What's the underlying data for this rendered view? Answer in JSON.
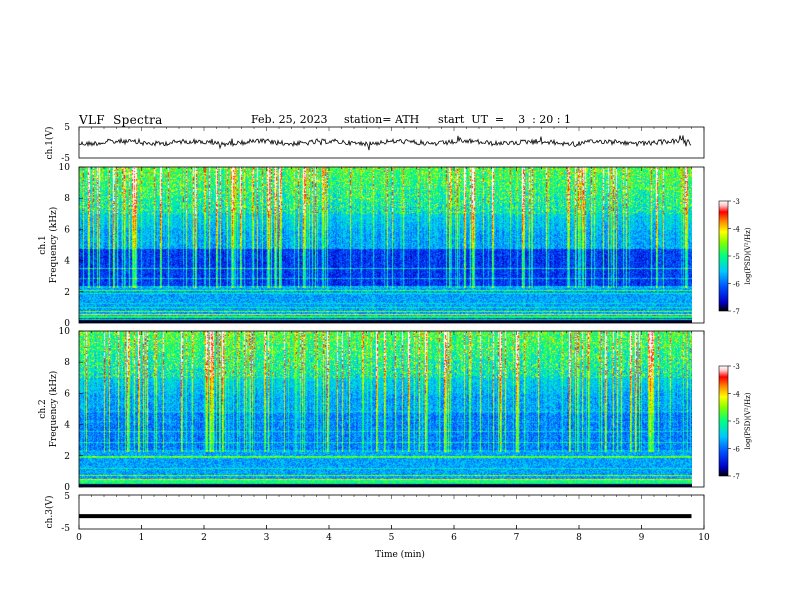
{
  "header": {
    "title": "VLF  Spectra",
    "date": "Feb. 25, 2023",
    "station": "station= ATH",
    "start": "start  UT  =    3  : 20 : 1"
  },
  "colors": {
    "colormap": [
      "#000000",
      "#0000c8",
      "#0050ff",
      "#00c8ff",
      "#00ff80",
      "#80ff00",
      "#ffff00",
      "#ff8000",
      "#ff0000",
      "#ffc8c8",
      "#ffffff"
    ],
    "trace": "#000000"
  },
  "chart_data": [
    {
      "type": "line",
      "name": "ch1-voltage",
      "ylabel": "ch.1(V)",
      "ylim": [
        -5,
        5
      ],
      "y_ticks": [
        "5",
        "-5"
      ],
      "x": [
        0,
        9.8
      ],
      "description_values": {
        "mean": 0.0,
        "noise_amplitude": 0.8
      }
    },
    {
      "type": "heatmap",
      "name": "ch1-spectrogram",
      "ylabel": "ch.1\nFrequency (kHz)",
      "ylabel_channel": "ch.1",
      "ylabel_freq": "Frequency (kHz)",
      "ylim": [
        0,
        10
      ],
      "y_ticks": [
        "0",
        "2",
        "4",
        "6",
        "8",
        "10"
      ],
      "colorbar": {
        "label": "log(PSD)(V²/Hz)",
        "range": [
          -7,
          -3
        ],
        "ticks": [
          "-3",
          "-4",
          "-5",
          "-6",
          "-7"
        ]
      }
    },
    {
      "type": "heatmap",
      "name": "ch2-spectrogram",
      "ylabel": "ch.2\nFrequency (kHz)",
      "ylabel_channel": "ch.2",
      "ylabel_freq": "Frequency (kHz)",
      "ylim": [
        0,
        10
      ],
      "y_ticks": [
        "0",
        "2",
        "4",
        "6",
        "8",
        "10"
      ],
      "colorbar": {
        "label": "log(PSD)(V²/Hz)",
        "range": [
          -7,
          -3
        ],
        "ticks": [
          "-3",
          "-4",
          "-5",
          "-6",
          "-7"
        ]
      }
    },
    {
      "type": "line",
      "name": "ch3-voltage",
      "ylabel": "ch.3(V)",
      "ylim": [
        -5,
        5
      ],
      "y_ticks": [
        "5",
        "-5"
      ],
      "x": [
        0,
        9.8
      ],
      "y": [
        -1.2,
        -1.2
      ]
    }
  ],
  "xaxis": {
    "label": "Time  (min)",
    "range": [
      0,
      10
    ],
    "ticks": [
      "0",
      "1",
      "2",
      "3",
      "4",
      "5",
      "6",
      "7",
      "8",
      "9",
      "10"
    ]
  }
}
